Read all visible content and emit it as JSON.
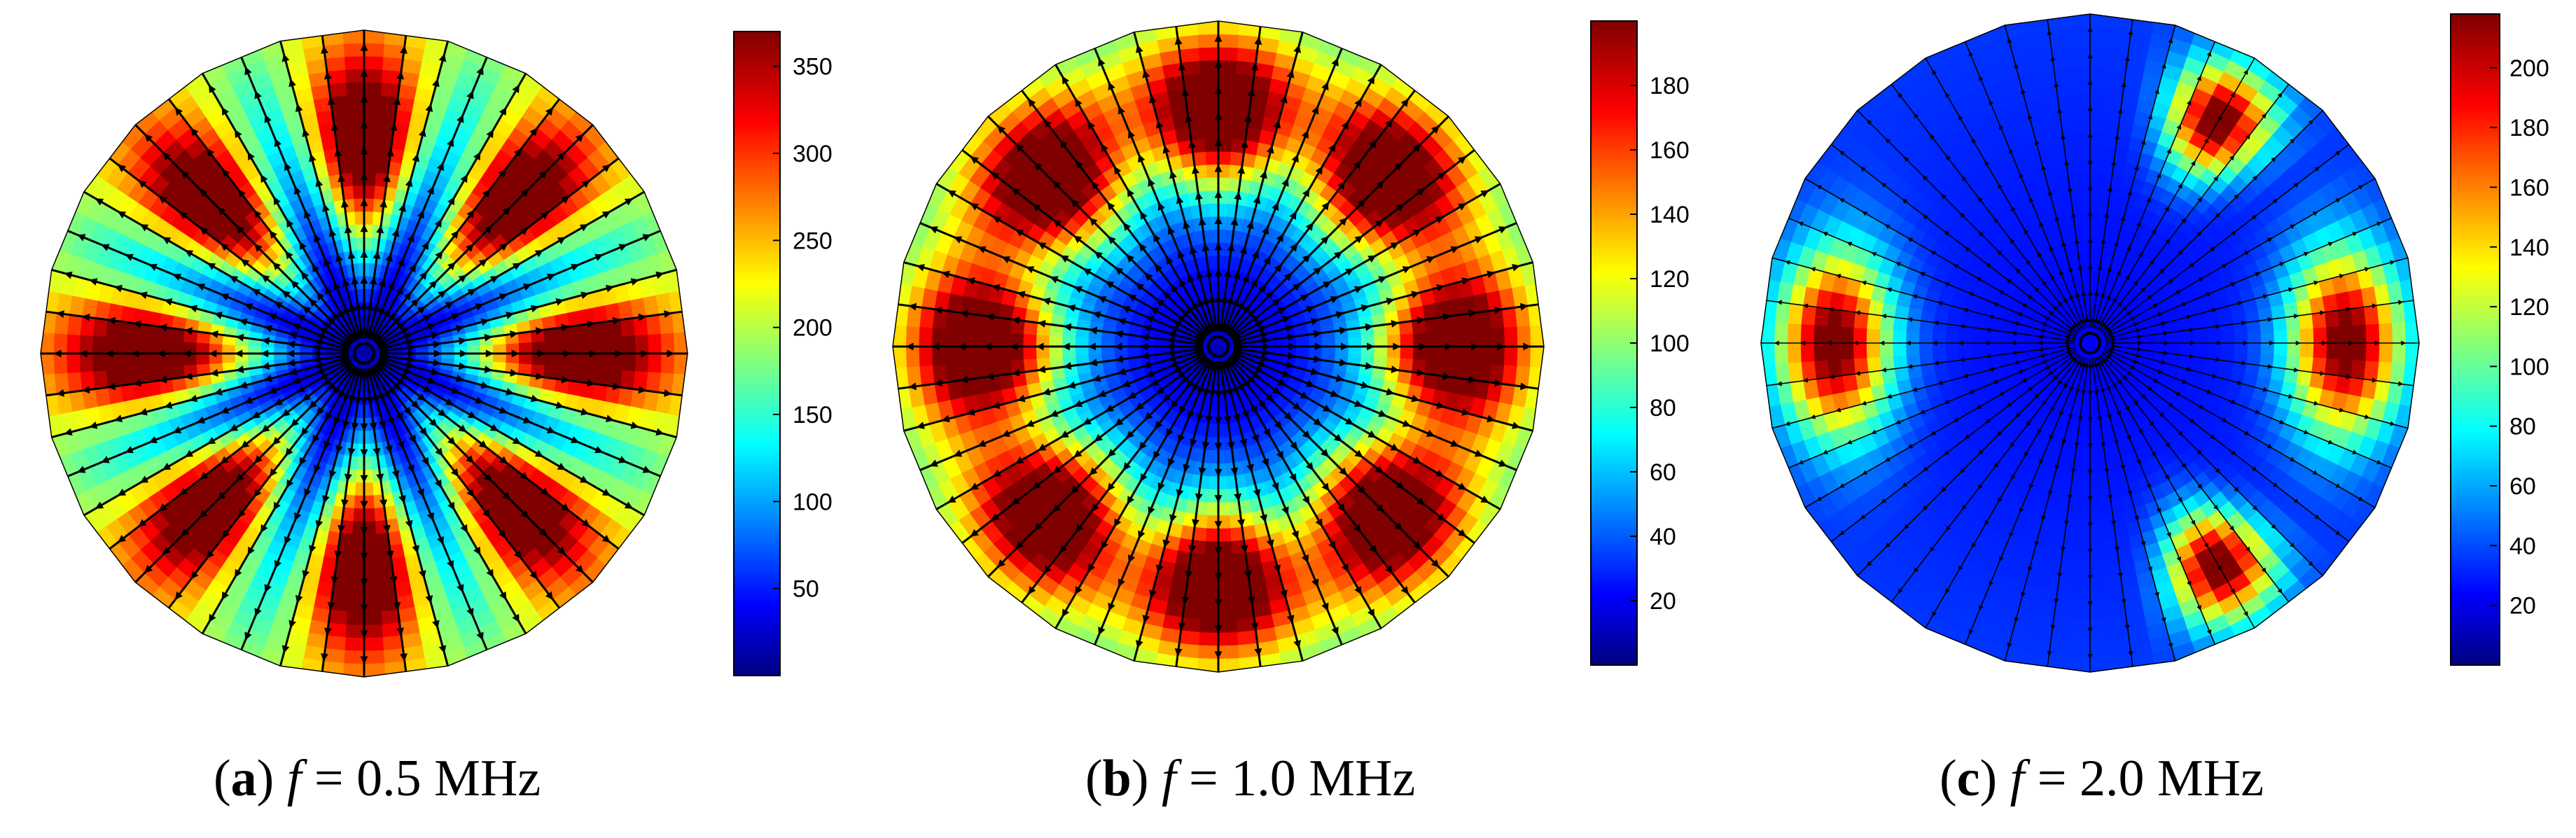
{
  "panels": [
    {
      "id": "a",
      "caption": {
        "letter": "a",
        "variable": "f",
        "equals": " = ",
        "value": "0.5 MHz"
      },
      "colorbar": {
        "ticks": [
          "50",
          "100",
          "150",
          "200",
          "250",
          "300",
          "350"
        ],
        "min": 0,
        "max": 370
      },
      "pattern": {
        "lobes": 8,
        "center_level": 0.05,
        "rim_level": 0.45,
        "peak_radius": 0.62,
        "peak_width": 0.3,
        "mode": "spokes"
      }
    },
    {
      "id": "b",
      "caption": {
        "letter": "b",
        "variable": "f",
        "equals": " = ",
        "value": "1.0 MHz"
      },
      "colorbar": {
        "ticks": [
          "20",
          "40",
          "60",
          "80",
          "100",
          "120",
          "140",
          "160",
          "180"
        ],
        "min": 0,
        "max": 200
      },
      "pattern": {
        "lobes": 8,
        "center_level": 0.05,
        "rim_level": 0.4,
        "peak_radius": 0.7,
        "peak_width": 0.22,
        "mode": "ring"
      }
    },
    {
      "id": "c",
      "caption": {
        "letter": "c",
        "variable": "f",
        "equals": " = ",
        "value": "2.0 MHz"
      },
      "colorbar": {
        "ticks": [
          "20",
          "40",
          "60",
          "80",
          "100",
          "120",
          "140",
          "160",
          "180",
          "200"
        ],
        "min": 0,
        "max": 218
      },
      "pattern": {
        "lobes": 6,
        "center_level": 0.12,
        "rim_level": 0.18,
        "peak_radius": 0.75,
        "peak_width": 0.16,
        "mode": "spots"
      }
    }
  ],
  "colors": {
    "arrow": "#000000",
    "cbar_top": "#7f0000",
    "cbar_bottom": "#00007f"
  }
}
